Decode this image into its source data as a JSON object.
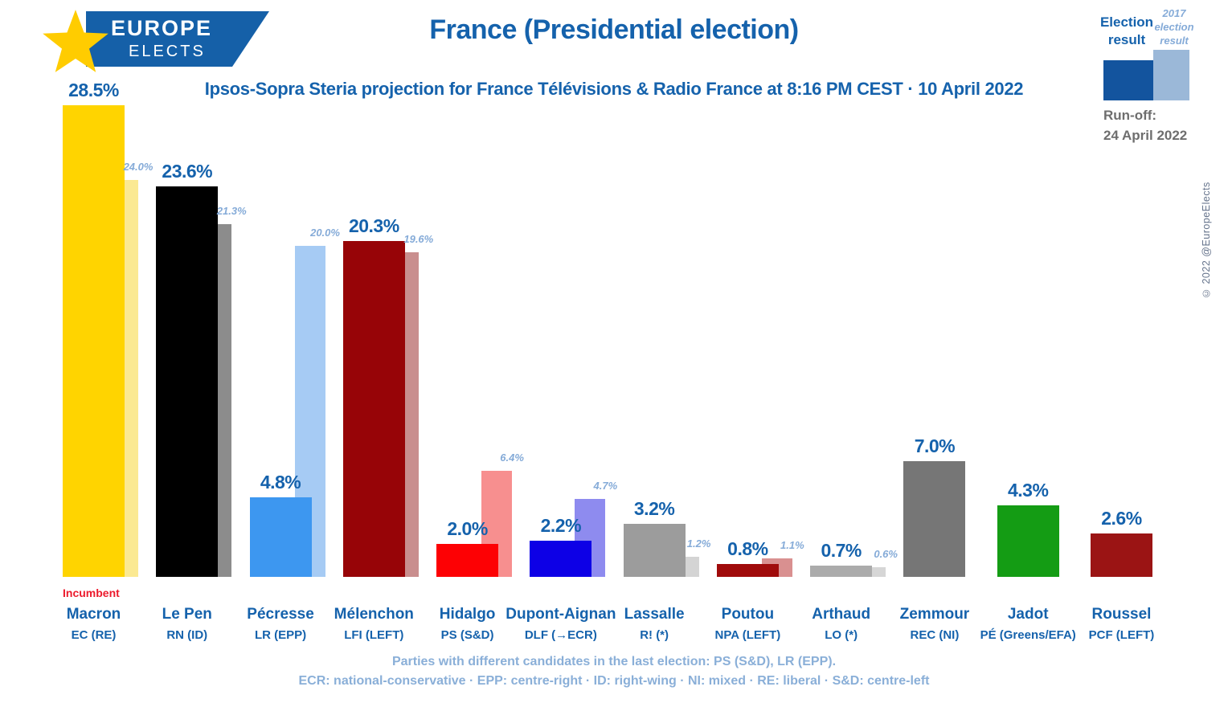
{
  "colors": {
    "accent_blue": "#1562AC",
    "light_blue": "#85ABD8",
    "incumbent_red": "#EC1B2D",
    "runoff_gray": "#6E6E6E"
  },
  "header": {
    "logo": {
      "line1": "EUROPE",
      "line2": "ELECTS"
    },
    "title": "France (Presidential election)",
    "subtitle": "Ipsos-Sopra Steria projection for France Télévisions & Radio France at 8:16 PM CEST · 10 April 2022",
    "legend": {
      "current_label": "Election result",
      "previous_label": "2017 election result",
      "current_color": "#13549E",
      "previous_color": "#9BB8D8",
      "runoff_label": "Run-off:",
      "runoff_date": "24 April 2022",
      "copyright": "© 2022 @EuropeElects"
    }
  },
  "chart_data": {
    "type": "bar",
    "unit": "%",
    "ylim": [
      0,
      30
    ],
    "grid": false,
    "legend_position": "top-right",
    "series": [
      {
        "name": "Election result"
      },
      {
        "name": "2017 election result"
      }
    ],
    "candidates": [
      {
        "name": "Macron",
        "party": "EC (RE)",
        "value": 28.5,
        "label": "28.5%",
        "prev_value": 24.0,
        "prev_label": "24.0%",
        "color": "#FFD400",
        "prev_color": "#FBE992",
        "note": "Incumbent"
      },
      {
        "name": "Le Pen",
        "party": "RN (ID)",
        "value": 23.6,
        "label": "23.6%",
        "prev_value": 21.3,
        "prev_label": "21.3%",
        "color": "#000000",
        "prev_color": "#8C8C8C"
      },
      {
        "name": "Pécresse",
        "party": "LR (EPP)",
        "value": 4.8,
        "label": "4.8%",
        "prev_value": 20.0,
        "prev_label": "20.0%",
        "color": "#3D97F0",
        "prev_color": "#A6CBF4"
      },
      {
        "name": "Mélenchon",
        "party": "LFI (LEFT)",
        "value": 20.3,
        "label": "20.3%",
        "prev_value": 19.6,
        "prev_label": "19.6%",
        "color": "#970407",
        "prev_color": "#C98E8E"
      },
      {
        "name": "Hidalgo",
        "party": "PS (S&D)",
        "value": 2.0,
        "label": "2.0%",
        "prev_value": 6.4,
        "prev_label": "6.4%",
        "color": "#FD0104",
        "prev_color": "#F78F8F"
      },
      {
        "name": "Dupont-Aignan",
        "party": "DLF (→ECR)",
        "value": 2.2,
        "label": "2.2%",
        "prev_value": 4.7,
        "prev_label": "4.7%",
        "color": "#0D00E6",
        "prev_color": "#8E8BEF"
      },
      {
        "name": "Lassalle",
        "party": "R! (*)",
        "value": 3.2,
        "label": "3.2%",
        "prev_value": 1.2,
        "prev_label": "1.2%",
        "color": "#9C9C9C",
        "prev_color": "#D4D4D4"
      },
      {
        "name": "Poutou",
        "party": "NPA (LEFT)",
        "value": 0.8,
        "label": "0.8%",
        "prev_value": 1.1,
        "prev_label": "1.1%",
        "color": "#A00B0B",
        "prev_color": "#D99090"
      },
      {
        "name": "Arthaud",
        "party": "LO (*)",
        "value": 0.7,
        "label": "0.7%",
        "prev_value": 0.6,
        "prev_label": "0.6%",
        "color": "#ABABAB",
        "prev_color": "#D6D6D6"
      },
      {
        "name": "Zemmour",
        "party": "REC (NI)",
        "value": 7.0,
        "label": "7.0%",
        "prev_value": null,
        "prev_label": null,
        "color": "#767676",
        "prev_color": null
      },
      {
        "name": "Jadot",
        "party": "PÉ (Greens/EFA)",
        "value": 4.3,
        "label": "4.3%",
        "prev_value": null,
        "prev_label": null,
        "color": "#149C14",
        "prev_color": null
      },
      {
        "name": "Roussel",
        "party": "PCF (LEFT)",
        "value": 2.6,
        "label": "2.6%",
        "prev_value": null,
        "prev_label": null,
        "color": "#9B1414",
        "prev_color": null
      }
    ]
  },
  "footer": {
    "line1": "Parties with different candidates in the last election: PS (S&D), LR (EPP).",
    "line2": "ECR: national-conservative · EPP: centre-right · ID: right-wing · NI: mixed · RE: liberal · S&D: centre-left"
  }
}
